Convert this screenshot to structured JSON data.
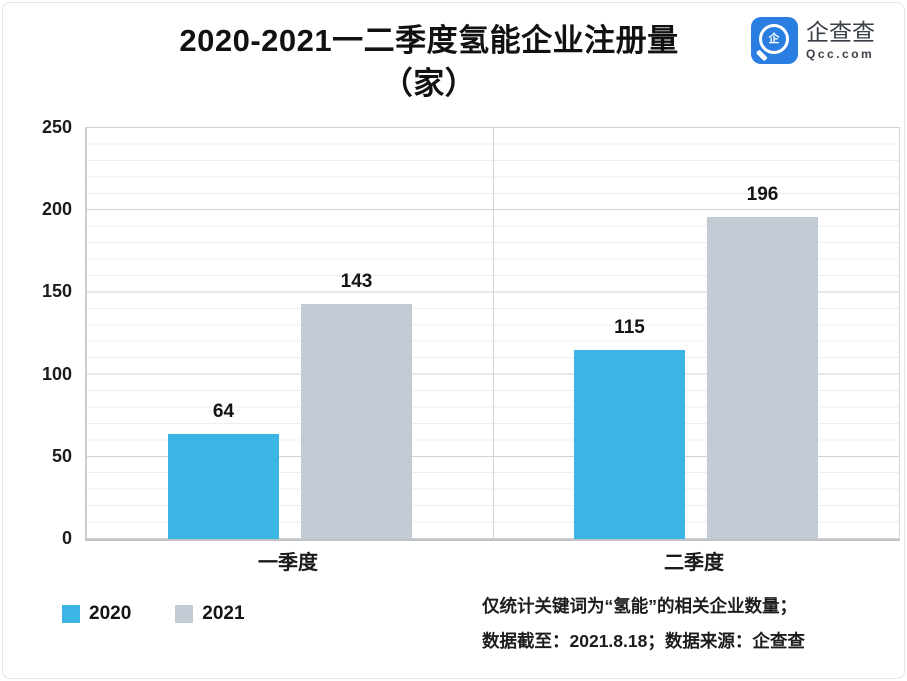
{
  "header": {
    "title_line1": "2020-2021一二季度氢能企业注册量",
    "title_line2": "（家）"
  },
  "logo": {
    "name": "企查查",
    "domain": "Qcc.com",
    "icon_char": "企",
    "brand_blue": "#2A7DE1"
  },
  "chart_data": {
    "type": "bar",
    "title": "2020-2021一二季度氢能企业注册量（家）",
    "categories": [
      "一季度",
      "二季度"
    ],
    "series": [
      {
        "name": "2020",
        "color": "#3BB6E4",
        "values": [
          64,
          115
        ]
      },
      {
        "name": "2021",
        "color": "#C2CBD3",
        "values": [
          143,
          196
        ]
      }
    ],
    "ylim": [
      0,
      250
    ],
    "yticks": [
      250,
      200,
      150,
      100,
      50,
      0
    ],
    "grid": "horizontal minor every 10, major every 50",
    "legend_position": "bottom-left",
    "xlabel": "",
    "ylabel": ""
  },
  "footer": {
    "note_line1": "仅统计关键词为“氢能”的相关企业数量；",
    "note_line2": "数据截至：2021.8.18；数据来源：企查查"
  }
}
